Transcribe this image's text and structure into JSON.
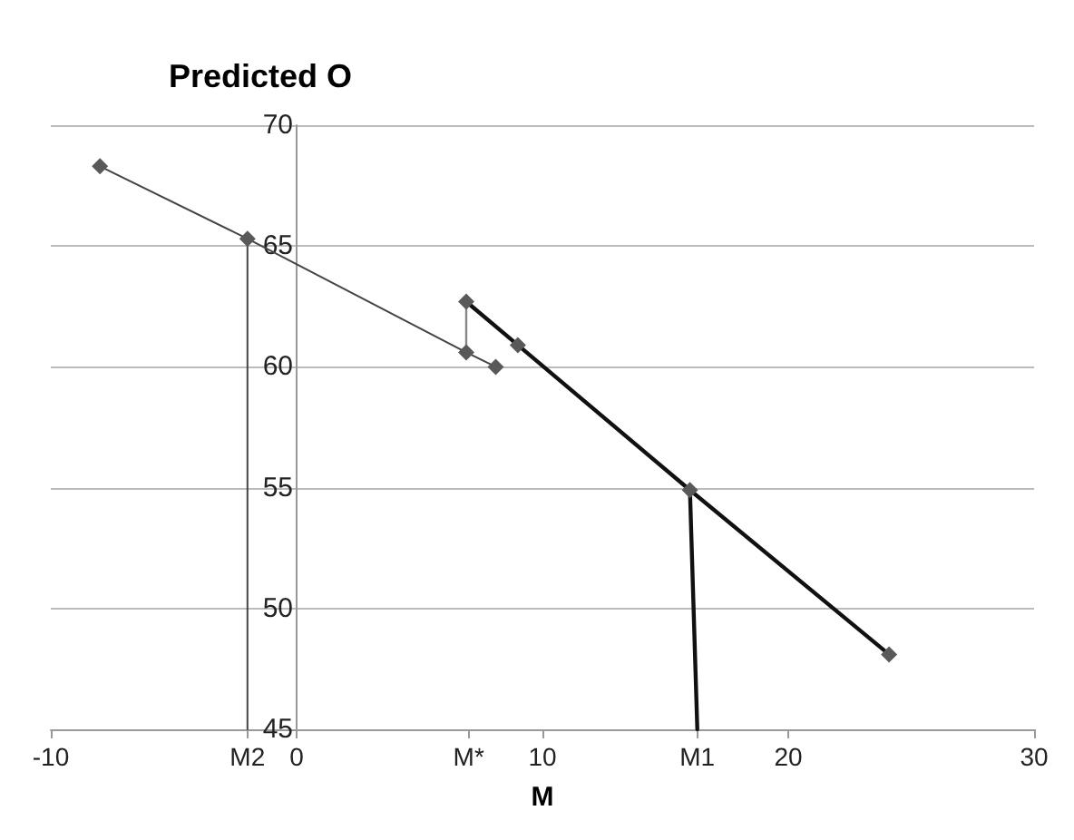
{
  "chart_data": {
    "type": "line",
    "title": "Predicted O",
    "xlabel": "M",
    "xlim": [
      -10,
      30
    ],
    "xticks": [
      -10,
      {
        "value": -2,
        "label": "M2"
      },
      0,
      {
        "value": 7,
        "label": "M*"
      },
      10,
      {
        "value": 16.3,
        "label": "M1"
      },
      20,
      30
    ],
    "ylim": [
      45,
      70
    ],
    "yticks": [
      45,
      50,
      55,
      60,
      65,
      70
    ],
    "grid": "y",
    "series": [
      {
        "color": "#444444",
        "marker": "diamond",
        "x": [
          -8.0,
          -2.0,
          6.9,
          8.1
        ],
        "values": [
          68.3,
          65.3,
          60.6,
          60.0
        ]
      },
      {
        "color": "#888888",
        "x": [
          6.9,
          6.9
        ],
        "values": [
          60.6,
          62.7
        ]
      },
      {
        "color": "#111111",
        "marker": "diamond",
        "x": [
          6.9,
          9.0,
          16.0,
          24.1
        ],
        "values": [
          62.7,
          60.9,
          54.9,
          48.1
        ]
      },
      {
        "color": "#444444",
        "marker": "none",
        "x": [
          -2.0,
          -2.0
        ],
        "values": [
          65.3,
          45
        ]
      },
      {
        "color": "#111111",
        "marker": "none",
        "x": [
          16.0,
          16.3
        ],
        "values": [
          54.9,
          45
        ]
      }
    ]
  }
}
